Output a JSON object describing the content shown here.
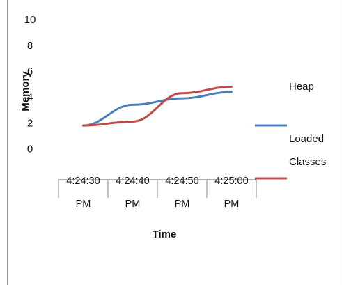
{
  "chart_data": {
    "type": "line",
    "title": "",
    "xlabel": "Time",
    "ylabel": "Memory",
    "categories": [
      "4:24:30 PM",
      "4:24:40 PM",
      "4:24:50 PM",
      "4:25:00 PM"
    ],
    "category_lines": [
      [
        "4:24:30",
        "PM"
      ],
      [
        "4:24:40",
        "PM"
      ],
      [
        "4:24:50",
        "PM"
      ],
      [
        "4:25:00",
        "PM"
      ]
    ],
    "yticks": [
      0,
      2,
      4,
      6,
      8,
      10
    ],
    "ylim": [
      -2.4,
      10
    ],
    "grid": false,
    "legend_position": "right",
    "series": [
      {
        "name": "Heap",
        "legend_lines": [
          "Heap"
        ],
        "color": "#4a7ebb",
        "values": [
          1.8,
          3.4,
          3.9,
          4.4
        ]
      },
      {
        "name": "Loaded Classes",
        "legend_lines": [
          "Loaded",
          "Classes"
        ],
        "color": "#be4b48",
        "values": [
          1.8,
          2.1,
          4.3,
          4.8
        ]
      }
    ]
  }
}
